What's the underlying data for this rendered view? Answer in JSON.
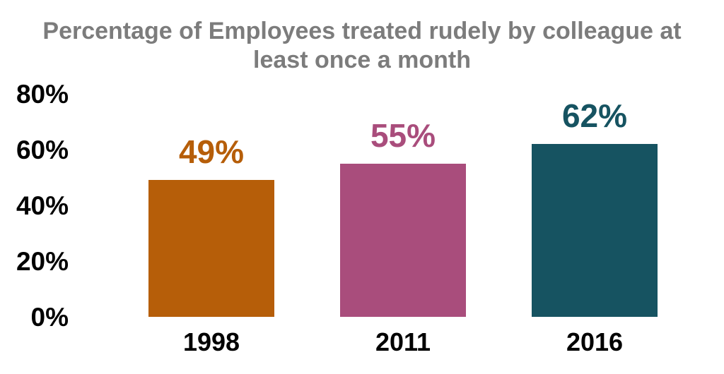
{
  "page": {
    "background": "#FFFFFF"
  },
  "chart_data": {
    "type": "bar",
    "title": "Percentage of Employees treated rudely by colleague at least once a month",
    "title_lines": [
      "Percentage of Employees treated rudely by colleague at",
      "least once a month"
    ],
    "title_color": "#7C7C7C",
    "categories": [
      "1998",
      "2011",
      "2016"
    ],
    "values": [
      49,
      55,
      62
    ],
    "value_labels": [
      "49%",
      "55%",
      "62%"
    ],
    "bar_colors": [
      "#B65E09",
      "#A94D7C",
      "#165361"
    ],
    "y_axis": {
      "ticks": [
        {
          "value": 80,
          "label": "80%"
        },
        {
          "value": 60,
          "label": "60%"
        },
        {
          "value": 40,
          "label": "40%"
        },
        {
          "value": 20,
          "label": "20%"
        },
        {
          "value": 0,
          "label": "0%"
        }
      ],
      "label_color": "#000000"
    },
    "x_axis": {
      "label_color": "#000000"
    },
    "ylim": [
      0,
      80
    ],
    "grid": false,
    "axis_lines": false,
    "legend": "none"
  }
}
